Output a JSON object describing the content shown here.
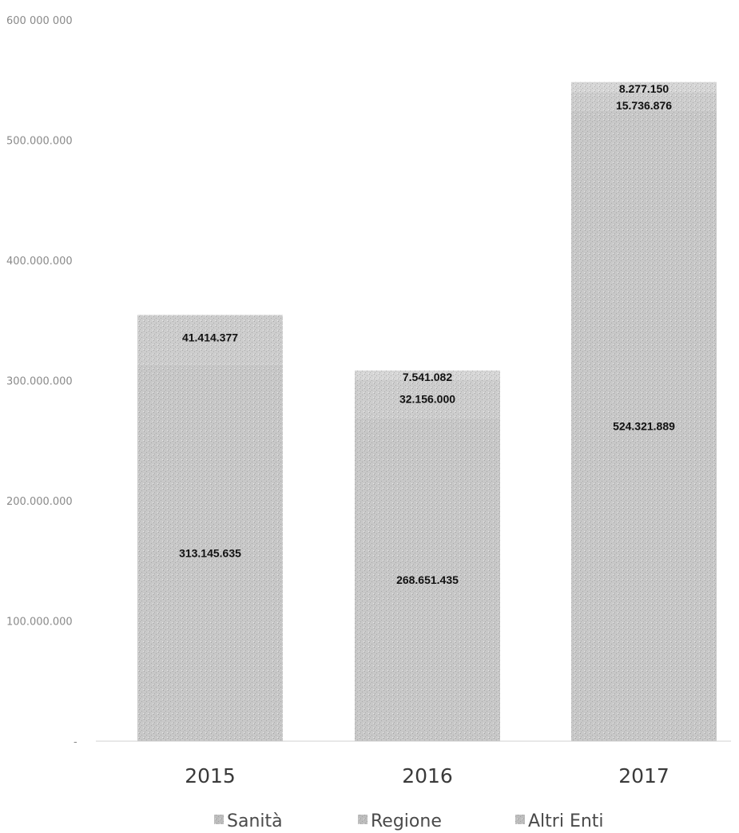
{
  "chart_data": {
    "type": "bar",
    "stacked": true,
    "categories": [
      "2015",
      "2016",
      "2017"
    ],
    "series": [
      {
        "name": "Sanità",
        "values": [
          313145635,
          268651435,
          524321889
        ],
        "labels": [
          "313.145.635",
          "268.651.435",
          "524.321.889"
        ],
        "color": "#c8c8c8"
      },
      {
        "name": "Regione",
        "values": [
          41414377,
          32156000,
          15736876
        ],
        "labels": [
          "41.414.377",
          "32.156.000",
          "15.736.876"
        ],
        "color": "#cdcdcd"
      },
      {
        "name": "Altri Enti",
        "values": [
          0,
          7541082,
          8277150
        ],
        "labels": [
          "",
          "7.541.082",
          "8.277.150"
        ],
        "color": "#d6d6d6"
      }
    ],
    "ylim": [
      0,
      600000000
    ],
    "yticks": [
      "-",
      "100.000.000",
      "200.000.000",
      "300.000.000",
      "400.000.000",
      "500.000.000",
      "600 000 000"
    ],
    "legend_position": "bottom",
    "grid": false
  }
}
